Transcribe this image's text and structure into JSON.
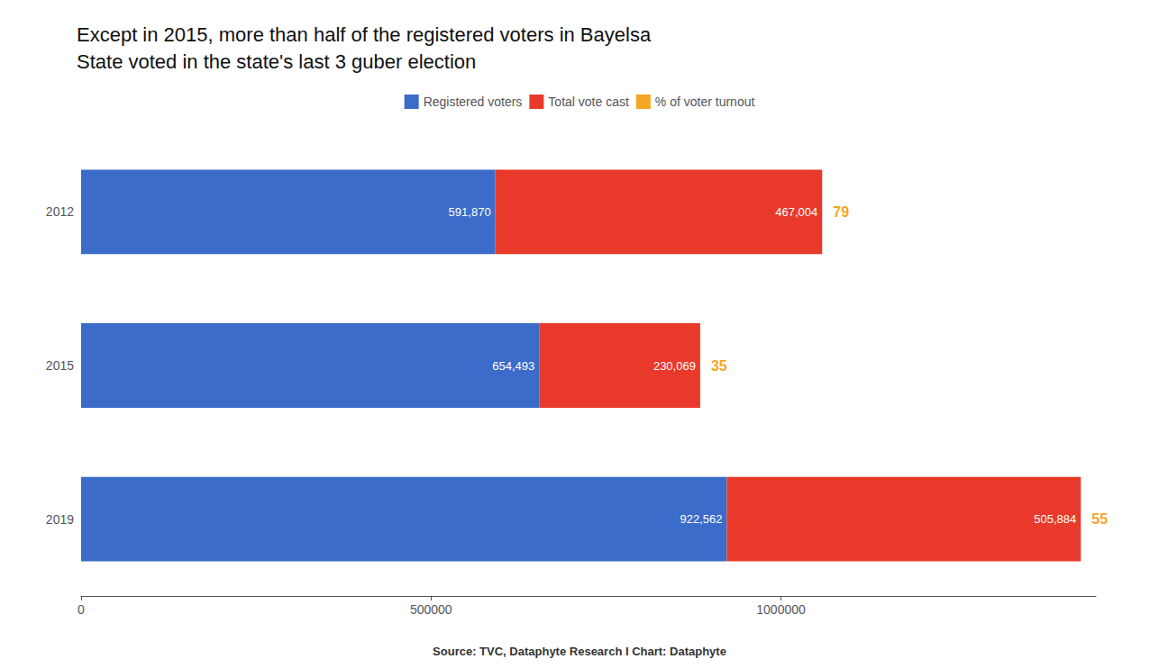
{
  "chart_data": {
    "type": "bar",
    "orientation": "horizontal",
    "stacked": true,
    "title": "Except in 2015, more than half of the registered voters in Bayelsa\nState voted in the state's last 3 guber election",
    "categories": [
      "2012",
      "2015",
      "2019"
    ],
    "series": [
      {
        "name": "Registered voters",
        "color": "#3B6CC9",
        "values": [
          591870,
          654493,
          922562
        ],
        "value_labels": [
          "591,870",
          "654,493",
          "922,562"
        ]
      },
      {
        "name": "Total vote cast",
        "color": "#E8392A",
        "values": [
          467004,
          230069,
          505884
        ],
        "value_labels": [
          "467,004",
          "230,069",
          "505,884"
        ]
      },
      {
        "name": "% of voter turnout",
        "color": "#F5A623",
        "type": "text",
        "values": [
          79,
          35,
          55
        ]
      }
    ],
    "xlim": [
      0,
      1450000
    ],
    "xticks": [
      0,
      500000,
      1000000
    ],
    "data_labels": true,
    "grid": false,
    "legend": "top",
    "annotations": [
      "Source: TVC, Dataphyte Research I Chart: Dataphyte"
    ]
  }
}
